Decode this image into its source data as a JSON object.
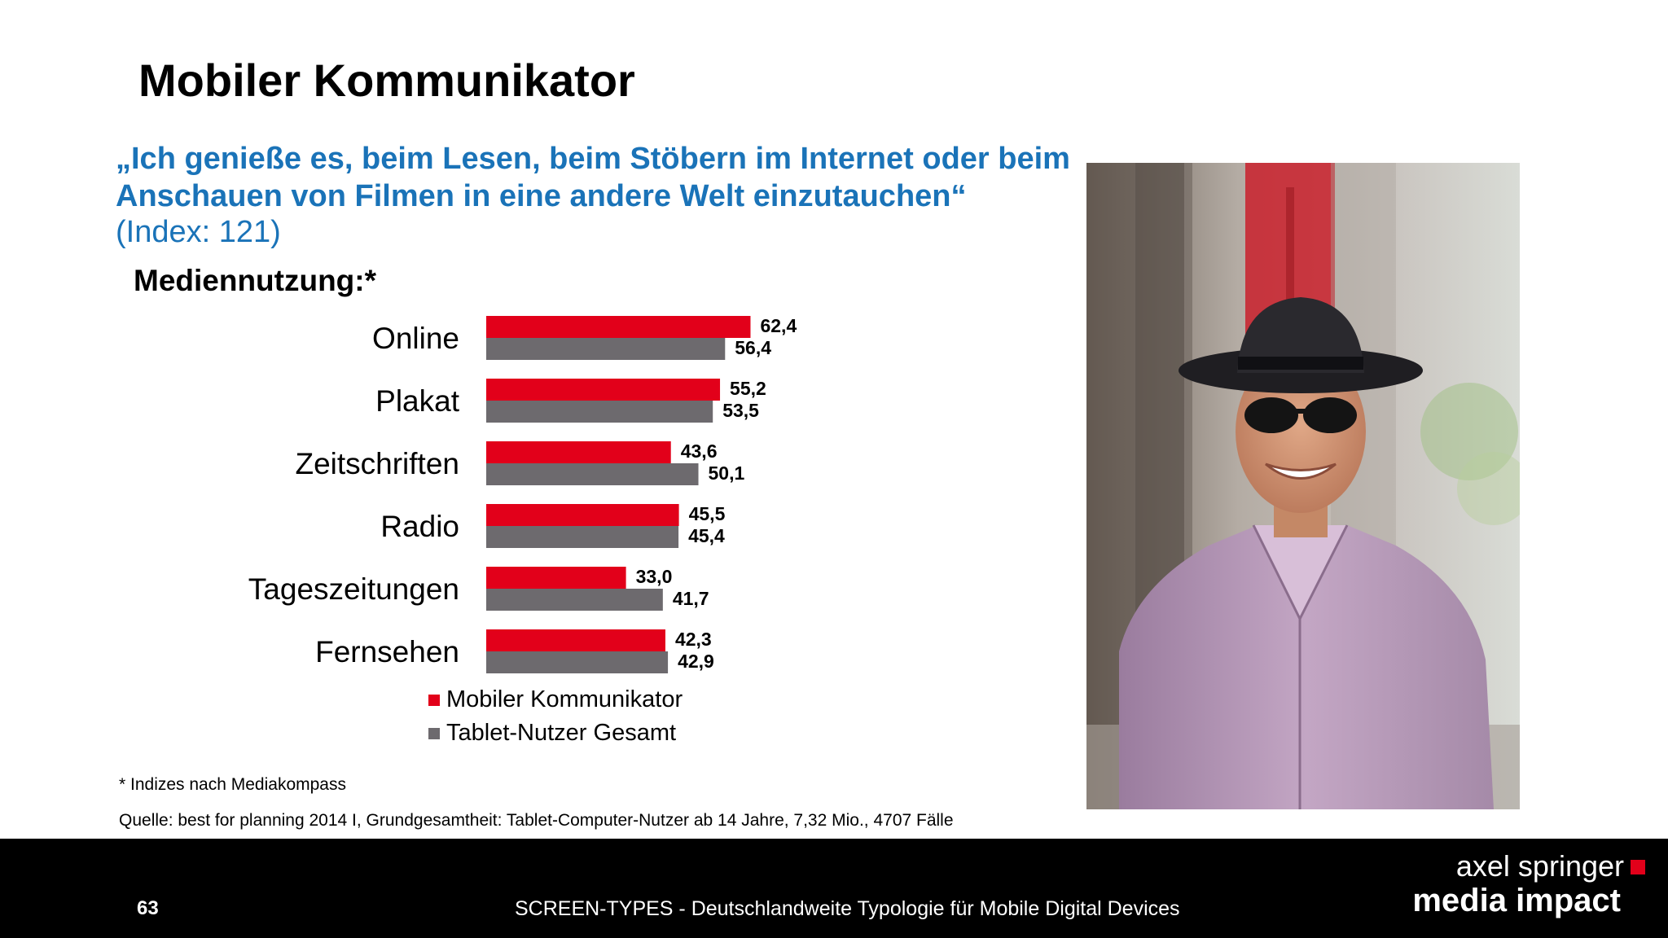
{
  "slide": {
    "title": "Mobiler Kommunikator",
    "quote": "„Ich genieße es, beim Lesen, beim Stöbern im Internet oder beim Anschauen von Filmen in eine andere Welt einzutauchen“",
    "quote_index": "(Index: 121)",
    "chart_heading": "Mediennutzung:*",
    "footnote": "* Indizes nach Mediakompass",
    "source": "Quelle: best for planning 2014 I, Grundgesamtheit: Tablet-Computer-Nutzer ab 14 Jahre, 7,32 Mio., 4707 Fälle"
  },
  "footer": {
    "page_number": "63",
    "text": "SCREEN-TYPES - Deutschlandweite Typologie für Mobile Digital Devices",
    "brand_line1": "axel springer",
    "brand_line2": "media impact"
  },
  "colors": {
    "accent_red": "#e2001a",
    "series_gray": "#6d6a6e",
    "quote_blue": "#1a73b8",
    "footer_bg": "#000000"
  },
  "icons": {
    "brand_square": "red-square-icon",
    "legend_markers": [
      "red-square-icon",
      "gray-square-icon"
    ]
  },
  "chart_data": {
    "type": "bar",
    "orientation": "horizontal",
    "categories": [
      "Online",
      "Plakat",
      "Zeitschriften",
      "Radio",
      "Tageszeitungen",
      "Fernsehen"
    ],
    "series": [
      {
        "name": "Mobiler Kommunikator",
        "color": "#e2001a",
        "values": [
          62.4,
          55.2,
          43.6,
          45.5,
          33.0,
          42.3
        ],
        "labels": [
          "62,4",
          "55,2",
          "43,6",
          "45,5",
          "33,0",
          "42,3"
        ]
      },
      {
        "name": "Tablet-Nutzer Gesamt",
        "color": "#6d6a6e",
        "values": [
          56.4,
          53.5,
          50.1,
          45.4,
          41.7,
          42.9
        ],
        "labels": [
          "56,4",
          "53,5",
          "50,1",
          "45,4",
          "41,7",
          "42,9"
        ]
      }
    ],
    "xlim": [
      0,
      100
    ],
    "grid": false,
    "legend_position": "bottom"
  }
}
